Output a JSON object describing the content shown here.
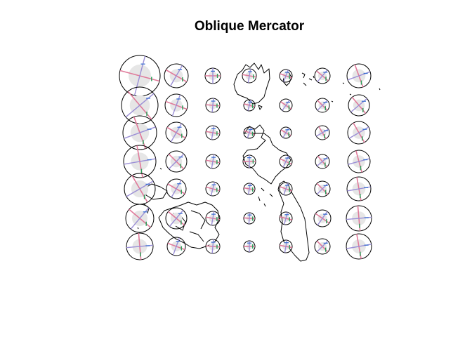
{
  "title": "Oblique Mercator",
  "colors": {
    "background": "#ffffff",
    "coastline": "#000000",
    "indicatrix_outline": "#000000",
    "indicatrix_fill": "#e6e6e6",
    "axis_major": "#e07a9a",
    "axis_minor": "#9b8fd6",
    "meridian_mark": "#2e9e5b",
    "parallel_mark": "#3a6fd0"
  },
  "indicatrix_grid": {
    "rows": 7,
    "cols": 7
  }
}
